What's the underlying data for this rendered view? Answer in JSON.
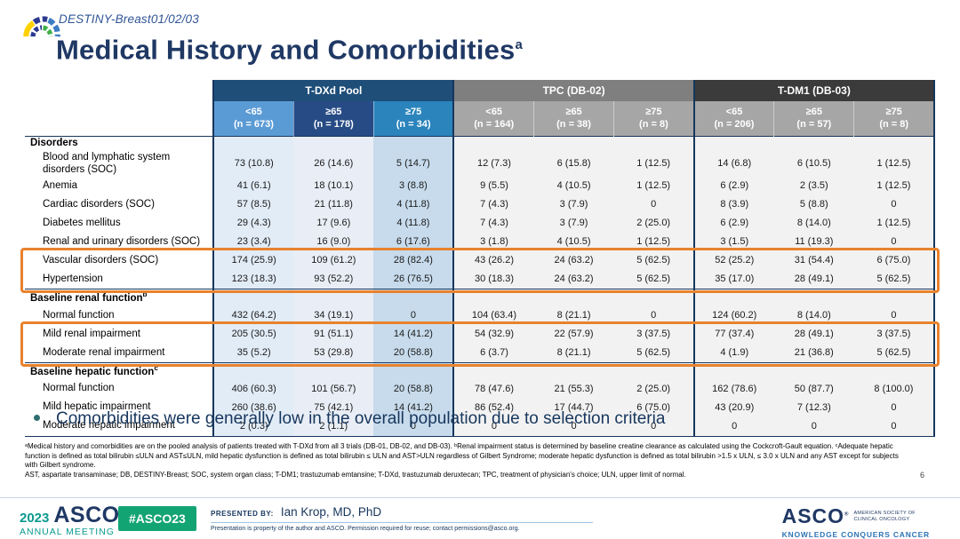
{
  "slide": {
    "eyebrow": "DESTINY-Breast01/02/03",
    "title": "Medical History and Comorbidities",
    "title_superscript": "a",
    "bullet": "Comorbidities were generally low in the overall population due to selection criteria",
    "page_number": "6"
  },
  "table": {
    "groups": [
      {
        "label": "T-DXd Pool",
        "columns": [
          {
            "age": "<65",
            "n": "(n = 673)"
          },
          {
            "age": "≥65",
            "n": "(n = 178)"
          },
          {
            "age": "≥75",
            "n": "(n = 34)"
          }
        ]
      },
      {
        "label": "TPC (DB-02)",
        "columns": [
          {
            "age": "<65",
            "n": "(n = 164)"
          },
          {
            "age": "≥65",
            "n": "(n = 38)"
          },
          {
            "age": "≥75",
            "n": "(n = 8)"
          }
        ]
      },
      {
        "label": "T-DM1 (DB-03)",
        "columns": [
          {
            "age": "<65",
            "n": "(n = 206)"
          },
          {
            "age": "≥65",
            "n": "(n = 57)"
          },
          {
            "age": "≥75",
            "n": "(n = 8)"
          }
        ]
      }
    ],
    "sections": [
      {
        "header": "Disorders",
        "header_sup": "",
        "rows": [
          {
            "label": "Blood and lymphatic system disorders (SOC)",
            "values": [
              "73 (10.8)",
              "26 (14.6)",
              "5 (14.7)",
              "12 (7.3)",
              "6 (15.8)",
              "1 (12.5)",
              "14 (6.8)",
              "6 (10.5)",
              "1 (12.5)"
            ]
          },
          {
            "label": "Anemia",
            "values": [
              "41 (6.1)",
              "18 (10.1)",
              "3 (8.8)",
              "9 (5.5)",
              "4 (10.5)",
              "1 (12.5)",
              "6 (2.9)",
              "2 (3.5)",
              "1 (12.5)"
            ]
          },
          {
            "label": "Cardiac disorders (SOC)",
            "values": [
              "57 (8.5)",
              "21 (11.8)",
              "4 (11.8)",
              "7 (4.3)",
              "3 (7.9)",
              "0",
              "8 (3.9)",
              "5 (8.8)",
              "0"
            ]
          },
          {
            "label": "Diabetes mellitus",
            "values": [
              "29 (4.3)",
              "17 (9.6)",
              "4 (11.8)",
              "7 (4.3)",
              "3 (7.9)",
              "2 (25.0)",
              "6 (2.9)",
              "8 (14.0)",
              "1 (12.5)"
            ]
          },
          {
            "label": "Renal and urinary disorders (SOC)",
            "values": [
              "23 (3.4)",
              "16 (9.0)",
              "6 (17.6)",
              "3 (1.8)",
              "4 (10.5)",
              "1 (12.5)",
              "3 (1.5)",
              "11 (19.3)",
              "0"
            ]
          },
          {
            "label": "Vascular disorders (SOC)",
            "highlight": 0,
            "values": [
              "174 (25.9)",
              "109 (61.2)",
              "28 (82.4)",
              "43 (26.2)",
              "24 (63.2)",
              "5 (62.5)",
              "52 (25.2)",
              "31 (54.4)",
              "6 (75.0)"
            ]
          },
          {
            "label": "Hypertension",
            "highlight": 0,
            "values": [
              "123 (18.3)",
              "93 (52.2)",
              "26 (76.5)",
              "30 (18.3)",
              "24 (63.2)",
              "5 (62.5)",
              "35 (17.0)",
              "28 (49.1)",
              "5 (62.5)"
            ]
          }
        ]
      },
      {
        "header": "Baseline renal function",
        "header_sup": "b",
        "rows": [
          {
            "label": "Normal function",
            "values": [
              "432 (64.2)",
              "34 (19.1)",
              "0",
              "104 (63.4)",
              "8 (21.1)",
              "0",
              "124 (60.2)",
              "8 (14.0)",
              "0"
            ]
          },
          {
            "label": "Mild renal impairment",
            "highlight": 1,
            "values": [
              "205 (30.5)",
              "91 (51.1)",
              "14 (41.2)",
              "54 (32.9)",
              "22 (57.9)",
              "3 (37.5)",
              "77 (37.4)",
              "28 (49.1)",
              "3 (37.5)"
            ]
          },
          {
            "label": "Moderate renal impairment",
            "highlight": 1,
            "values": [
              "35 (5.2)",
              "53 (29.8)",
              "20 (58.8)",
              "6 (3.7)",
              "8 (21.1)",
              "5 (62.5)",
              "4 (1.9)",
              "21 (36.8)",
              "5 (62.5)"
            ]
          }
        ]
      },
      {
        "header": "Baseline hepatic function",
        "header_sup": "c",
        "rows": [
          {
            "label": "Normal function",
            "values": [
              "406 (60.3)",
              "101 (56.7)",
              "20 (58.8)",
              "78 (47.6)",
              "21 (55.3)",
              "2 (25.0)",
              "162 (78.6)",
              "50 (87.7)",
              "8 (100.0)"
            ]
          },
          {
            "label": "Mild hepatic impairment",
            "values": [
              "260 (38.6)",
              "75 (42.1)",
              "14 (41.2)",
              "86 (52.4)",
              "17 (44.7)",
              "6 (75.0)",
              "43 (20.9)",
              "7 (12.3)",
              "0"
            ]
          },
          {
            "label": "Moderate hepatic impairment",
            "values": [
              "2 (0.3)",
              "2 (1.1)",
              "0",
              "0",
              "0",
              "0",
              "0",
              "0",
              "0"
            ]
          }
        ]
      }
    ]
  },
  "footnotes": {
    "definitions": "ᵃMedical history and comorbidities are on the pooled analysis of patients treated with T-DXd from all 3 trials (DB-01, DB-02, and DB-03). ᵇRenal impairment status is determined by baseline creatine clearance as calculated using the Cockcroft-Gault equation. ᶜAdequate hepatic function is defined as total bilirubin ≤ULN and AST≤ULN, mild hepatic dysfunction is defined as total bilirubin ≤ ULN and AST>ULN regardless of Gilbert Syndrome; moderate hepatic dysfunction is defined as total bilirubin >1.5 x ULN, ≤ 3.0 x ULN and any AST except for subjects with Gilbert syndrome.",
    "abbreviations": "AST, aspartate transaminase; DB, DESTINY-Breast; SOC, system organ class; T-DM1; trastuzumab emtansine; T-DXd, trastuzumab deruxtecan; TPC, treatment of physician's choice; ULN, upper limit of normal."
  },
  "footer": {
    "year": "2023",
    "asco": "ASCO",
    "registered": "®",
    "annual_meeting": "ANNUAL MEETING",
    "hashtag": "#ASCO23",
    "presented_by_label": "PRESENTED BY:",
    "presenter": "Ian Krop, MD, PhD",
    "permission": "Presentation is property of the author and ASCO. Permission required for reuse; contact permissions@asco.org.",
    "asco_right": "ASCO",
    "society_line1": "AMERICAN SOCIETY OF",
    "society_line2": "CLINICAL ONCOLOGY",
    "tagline": "KNOWLEDGE CONQUERS CANCER"
  },
  "colors": {
    "navy": "#1F3864",
    "tdxd_band": "#1F4E79",
    "tdxd_sub_lt65": "#5B9BD5",
    "tdxd_sub_ge65": "#274B85",
    "tdxd_sub_ge75": "#2B84BC",
    "tpc_band": "#7F7F7F",
    "gray_sub": "#A6A6A6",
    "tdm1_band": "#3B3B3B",
    "highlight_orange": "#E8822D",
    "footer_green": "#13A473",
    "footer_teal": "#0A9A8F"
  }
}
